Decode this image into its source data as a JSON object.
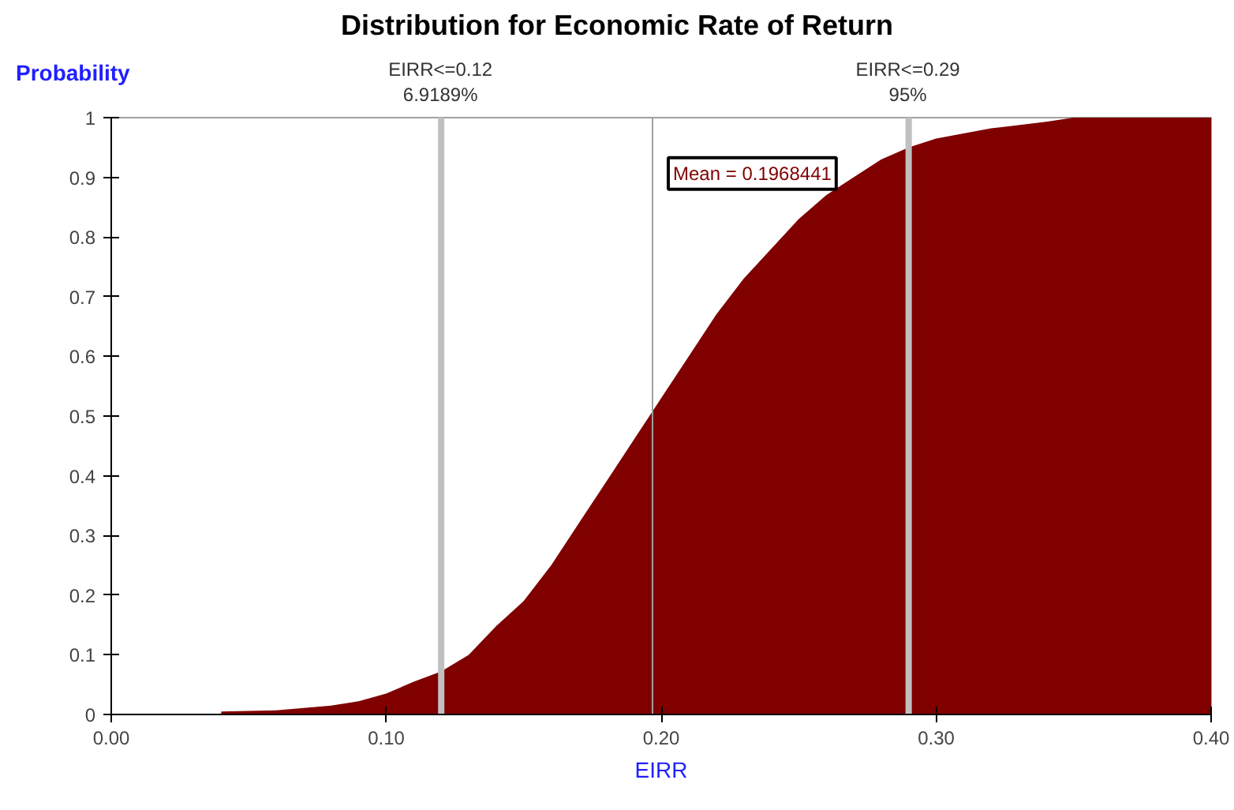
{
  "chart_data": {
    "type": "area",
    "title": "Distribution for Economic Rate of Return",
    "xlabel": "EIRR",
    "ylabel": "Probability",
    "x": [
      0.04,
      0.06,
      0.08,
      0.09,
      0.1,
      0.11,
      0.12,
      0.13,
      0.14,
      0.15,
      0.16,
      0.17,
      0.18,
      0.19,
      0.2,
      0.21,
      0.22,
      0.23,
      0.24,
      0.25,
      0.26,
      0.27,
      0.28,
      0.29,
      0.3,
      0.32,
      0.34,
      0.35,
      0.4
    ],
    "series": [
      {
        "color": "#800000",
        "values": [
          0.005,
          0.007,
          0.015,
          0.022,
          0.035,
          0.055,
          0.072,
          0.1,
          0.148,
          0.19,
          0.25,
          0.32,
          0.39,
          0.46,
          0.53,
          0.6,
          0.67,
          0.73,
          0.78,
          0.83,
          0.87,
          0.9,
          0.93,
          0.95,
          0.965,
          0.982,
          0.993,
          1.0,
          1.0
        ]
      }
    ],
    "xlim": [
      0,
      0.4
    ],
    "ylim": [
      0,
      1
    ],
    "xticks": [
      {
        "value": 0,
        "label": "0.00"
      },
      {
        "value": 0.1,
        "label": "0.10"
      },
      {
        "value": 0.2,
        "label": "0.20"
      },
      {
        "value": 0.3,
        "label": "0.30"
      },
      {
        "value": 0.4,
        "label": "0.40"
      }
    ],
    "yticks": [
      0,
      0.1,
      0.2,
      0.3,
      0.4,
      0.5,
      0.6,
      0.7,
      0.8,
      0.9,
      1
    ],
    "ref_lines": [
      {
        "axis": "x",
        "value": 0.12,
        "label": "EIRR<=0.12\n6.9189%",
        "color": "#c0c0c0"
      },
      {
        "axis": "x",
        "value": 0.29,
        "label": "EIRR<=0.29\n95%",
        "color": "#c0c0c0"
      },
      {
        "axis": "x",
        "value": 0.1968441,
        "label": "Mean = 0.1968441",
        "color": "#a0a0a0",
        "line_style": "solid"
      }
    ],
    "grid": false
  }
}
